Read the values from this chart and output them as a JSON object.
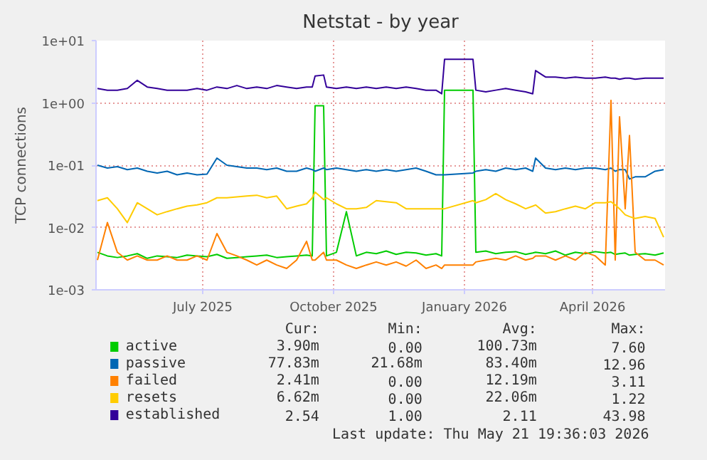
{
  "chart_data": {
    "type": "line",
    "title": "Netstat - by year",
    "ylabel": "TCP connections",
    "log": "y",
    "grid": true,
    "legend": "bottom",
    "line_style": "solid",
    "marker": "none",
    "xlim": [
      "2025-04-17",
      "2026-05-22"
    ],
    "xticks": [
      {
        "value": "2025-07-01",
        "label": "July 2025"
      },
      {
        "value": "2025-10-01",
        "label": "October 2025"
      },
      {
        "value": "2026-01-01",
        "label": "January 2026"
      },
      {
        "value": "2026-04-01",
        "label": "April 2026"
      }
    ],
    "ylim": [
      0.001,
      10
    ],
    "yticks": [
      {
        "value": 0.001,
        "label": "1e-03"
      },
      {
        "value": 0.01,
        "label": "1e-02"
      },
      {
        "value": 0.1,
        "label": "1e-01"
      },
      {
        "value": 1,
        "label": "1e+00"
      },
      {
        "value": 10,
        "label": "1e+01"
      }
    ],
    "x": [
      "2025-04-18",
      "2025-04-25",
      "2025-05-02",
      "2025-05-09",
      "2025-05-16",
      "2025-05-23",
      "2025-05-30",
      "2025-06-06",
      "2025-06-13",
      "2025-06-20",
      "2025-06-27",
      "2025-07-04",
      "2025-07-11",
      "2025-07-18",
      "2025-07-25",
      "2025-08-01",
      "2025-08-08",
      "2025-08-15",
      "2025-08-22",
      "2025-08-29",
      "2025-09-05",
      "2025-09-12",
      "2025-09-16",
      "2025-09-18",
      "2025-09-24",
      "2025-09-26",
      "2025-10-03",
      "2025-10-10",
      "2025-10-17",
      "2025-10-24",
      "2025-10-31",
      "2025-11-07",
      "2025-11-14",
      "2025-11-21",
      "2025-11-28",
      "2025-12-05",
      "2025-12-12",
      "2025-12-16",
      "2025-12-18",
      "2026-01-07",
      "2026-01-09",
      "2026-01-16",
      "2026-01-23",
      "2026-01-30",
      "2026-02-06",
      "2026-02-13",
      "2026-02-18",
      "2026-02-20",
      "2026-02-27",
      "2026-03-06",
      "2026-03-13",
      "2026-03-20",
      "2026-03-27",
      "2026-04-03",
      "2026-04-10",
      "2026-04-14",
      "2026-04-17",
      "2026-04-20",
      "2026-04-24",
      "2026-04-27",
      "2026-05-01",
      "2026-05-08",
      "2026-05-15",
      "2026-05-21"
    ],
    "series": [
      {
        "name": "active",
        "color": "#00cc00",
        "values": [
          0.004,
          0.0035,
          0.0033,
          0.0035,
          0.0038,
          0.0032,
          0.0035,
          0.0034,
          0.0033,
          0.0036,
          0.0035,
          0.0034,
          0.0037,
          0.0032,
          0.0033,
          0.0034,
          0.0035,
          0.0036,
          0.0033,
          0.0034,
          0.0035,
          0.0036,
          0.0035,
          0.9,
          0.9,
          0.0035,
          0.004,
          0.018,
          0.0035,
          0.004,
          0.0038,
          0.0042,
          0.0037,
          0.004,
          0.0039,
          0.0036,
          0.0038,
          0.0035,
          1.6,
          1.6,
          0.004,
          0.0042,
          0.0038,
          0.004,
          0.0041,
          0.0037,
          0.0039,
          0.004,
          0.0038,
          0.0042,
          0.0036,
          0.004,
          0.0038,
          0.0041,
          0.0039,
          0.004,
          0.0037,
          0.0038,
          0.0039,
          0.0036,
          0.0037,
          0.0038,
          0.0036,
          0.0039
        ]
      },
      {
        "name": "passive",
        "color": "#0066b3",
        "values": [
          0.1,
          0.09,
          0.095,
          0.085,
          0.09,
          0.08,
          0.075,
          0.08,
          0.07,
          0.075,
          0.07,
          0.072,
          0.13,
          0.1,
          0.095,
          0.09,
          0.09,
          0.085,
          0.09,
          0.08,
          0.08,
          0.09,
          0.085,
          0.08,
          0.09,
          0.085,
          0.09,
          0.085,
          0.08,
          0.085,
          0.08,
          0.085,
          0.08,
          0.085,
          0.09,
          0.08,
          0.07,
          0.07,
          0.07,
          0.075,
          0.08,
          0.085,
          0.08,
          0.09,
          0.085,
          0.09,
          0.08,
          0.13,
          0.09,
          0.085,
          0.09,
          0.085,
          0.09,
          0.09,
          0.085,
          0.09,
          0.08,
          0.085,
          0.085,
          0.06,
          0.065,
          0.065,
          0.08,
          0.085
        ]
      },
      {
        "name": "failed",
        "color": "#ff8000",
        "values": [
          0.003,
          0.012,
          0.004,
          0.003,
          0.0035,
          0.003,
          0.003,
          0.0035,
          0.003,
          0.003,
          0.0035,
          0.003,
          0.008,
          0.004,
          0.0035,
          0.003,
          0.0025,
          0.003,
          0.0025,
          0.0022,
          0.003,
          0.006,
          0.003,
          0.003,
          0.004,
          0.003,
          0.003,
          0.0025,
          0.0022,
          0.0025,
          0.0028,
          0.0025,
          0.0028,
          0.0024,
          0.003,
          0.0022,
          0.0025,
          0.0022,
          0.0025,
          0.0025,
          0.0028,
          0.003,
          0.0032,
          0.003,
          0.0035,
          0.003,
          0.0032,
          0.0035,
          0.0035,
          0.003,
          0.0035,
          0.003,
          0.004,
          0.0035,
          0.0025,
          1.1,
          0.003,
          0.6,
          0.02,
          0.3,
          0.004,
          0.003,
          0.003,
          0.0025
        ]
      },
      {
        "name": "resets",
        "color": "#ffcc00",
        "values": [
          0.027,
          0.03,
          0.02,
          0.012,
          0.025,
          0.02,
          0.016,
          0.018,
          0.02,
          0.022,
          0.023,
          0.025,
          0.03,
          0.03,
          0.031,
          0.032,
          0.033,
          0.03,
          0.032,
          0.02,
          0.022,
          0.024,
          0.03,
          0.037,
          0.028,
          0.03,
          0.024,
          0.02,
          0.02,
          0.021,
          0.027,
          0.026,
          0.025,
          0.02,
          0.02,
          0.02,
          0.02,
          0.02,
          0.02,
          0.027,
          0.025,
          0.028,
          0.035,
          0.028,
          0.024,
          0.02,
          0.022,
          0.023,
          0.017,
          0.018,
          0.02,
          0.022,
          0.02,
          0.025,
          0.025,
          0.026,
          0.023,
          0.02,
          0.016,
          0.015,
          0.014,
          0.015,
          0.014,
          0.007
        ]
      },
      {
        "name": "established",
        "color": "#330099",
        "values": [
          1.7,
          1.6,
          1.6,
          1.7,
          2.3,
          1.8,
          1.7,
          1.6,
          1.6,
          1.6,
          1.7,
          1.6,
          1.8,
          1.7,
          1.9,
          1.7,
          1.8,
          1.7,
          1.9,
          1.8,
          1.7,
          1.8,
          1.8,
          2.7,
          2.8,
          1.8,
          1.7,
          1.8,
          1.7,
          1.8,
          1.7,
          1.8,
          1.7,
          1.8,
          1.7,
          1.6,
          1.6,
          1.4,
          5.0,
          5.0,
          1.6,
          1.5,
          1.6,
          1.7,
          1.6,
          1.5,
          1.4,
          3.3,
          2.6,
          2.6,
          2.5,
          2.6,
          2.5,
          2.5,
          2.6,
          2.5,
          2.5,
          2.4,
          2.5,
          2.5,
          2.4,
          2.5,
          2.5,
          2.5
        ]
      }
    ],
    "annotations": [
      "Cur:",
      "Min:",
      "Avg:",
      "Max:",
      "3.90m",
      "0.00",
      "100.73m",
      "7.60",
      "77.83m",
      "21.68m",
      "83.40m",
      "12.96",
      "2.41m",
      "0.00",
      "12.19m",
      "3.11",
      "6.62m",
      "0.00",
      "22.06m",
      "1.22",
      "2.54",
      "1.00",
      "2.11",
      "43.98",
      "Last update: Thu May 21 19:36:03 2026"
    ]
  }
}
